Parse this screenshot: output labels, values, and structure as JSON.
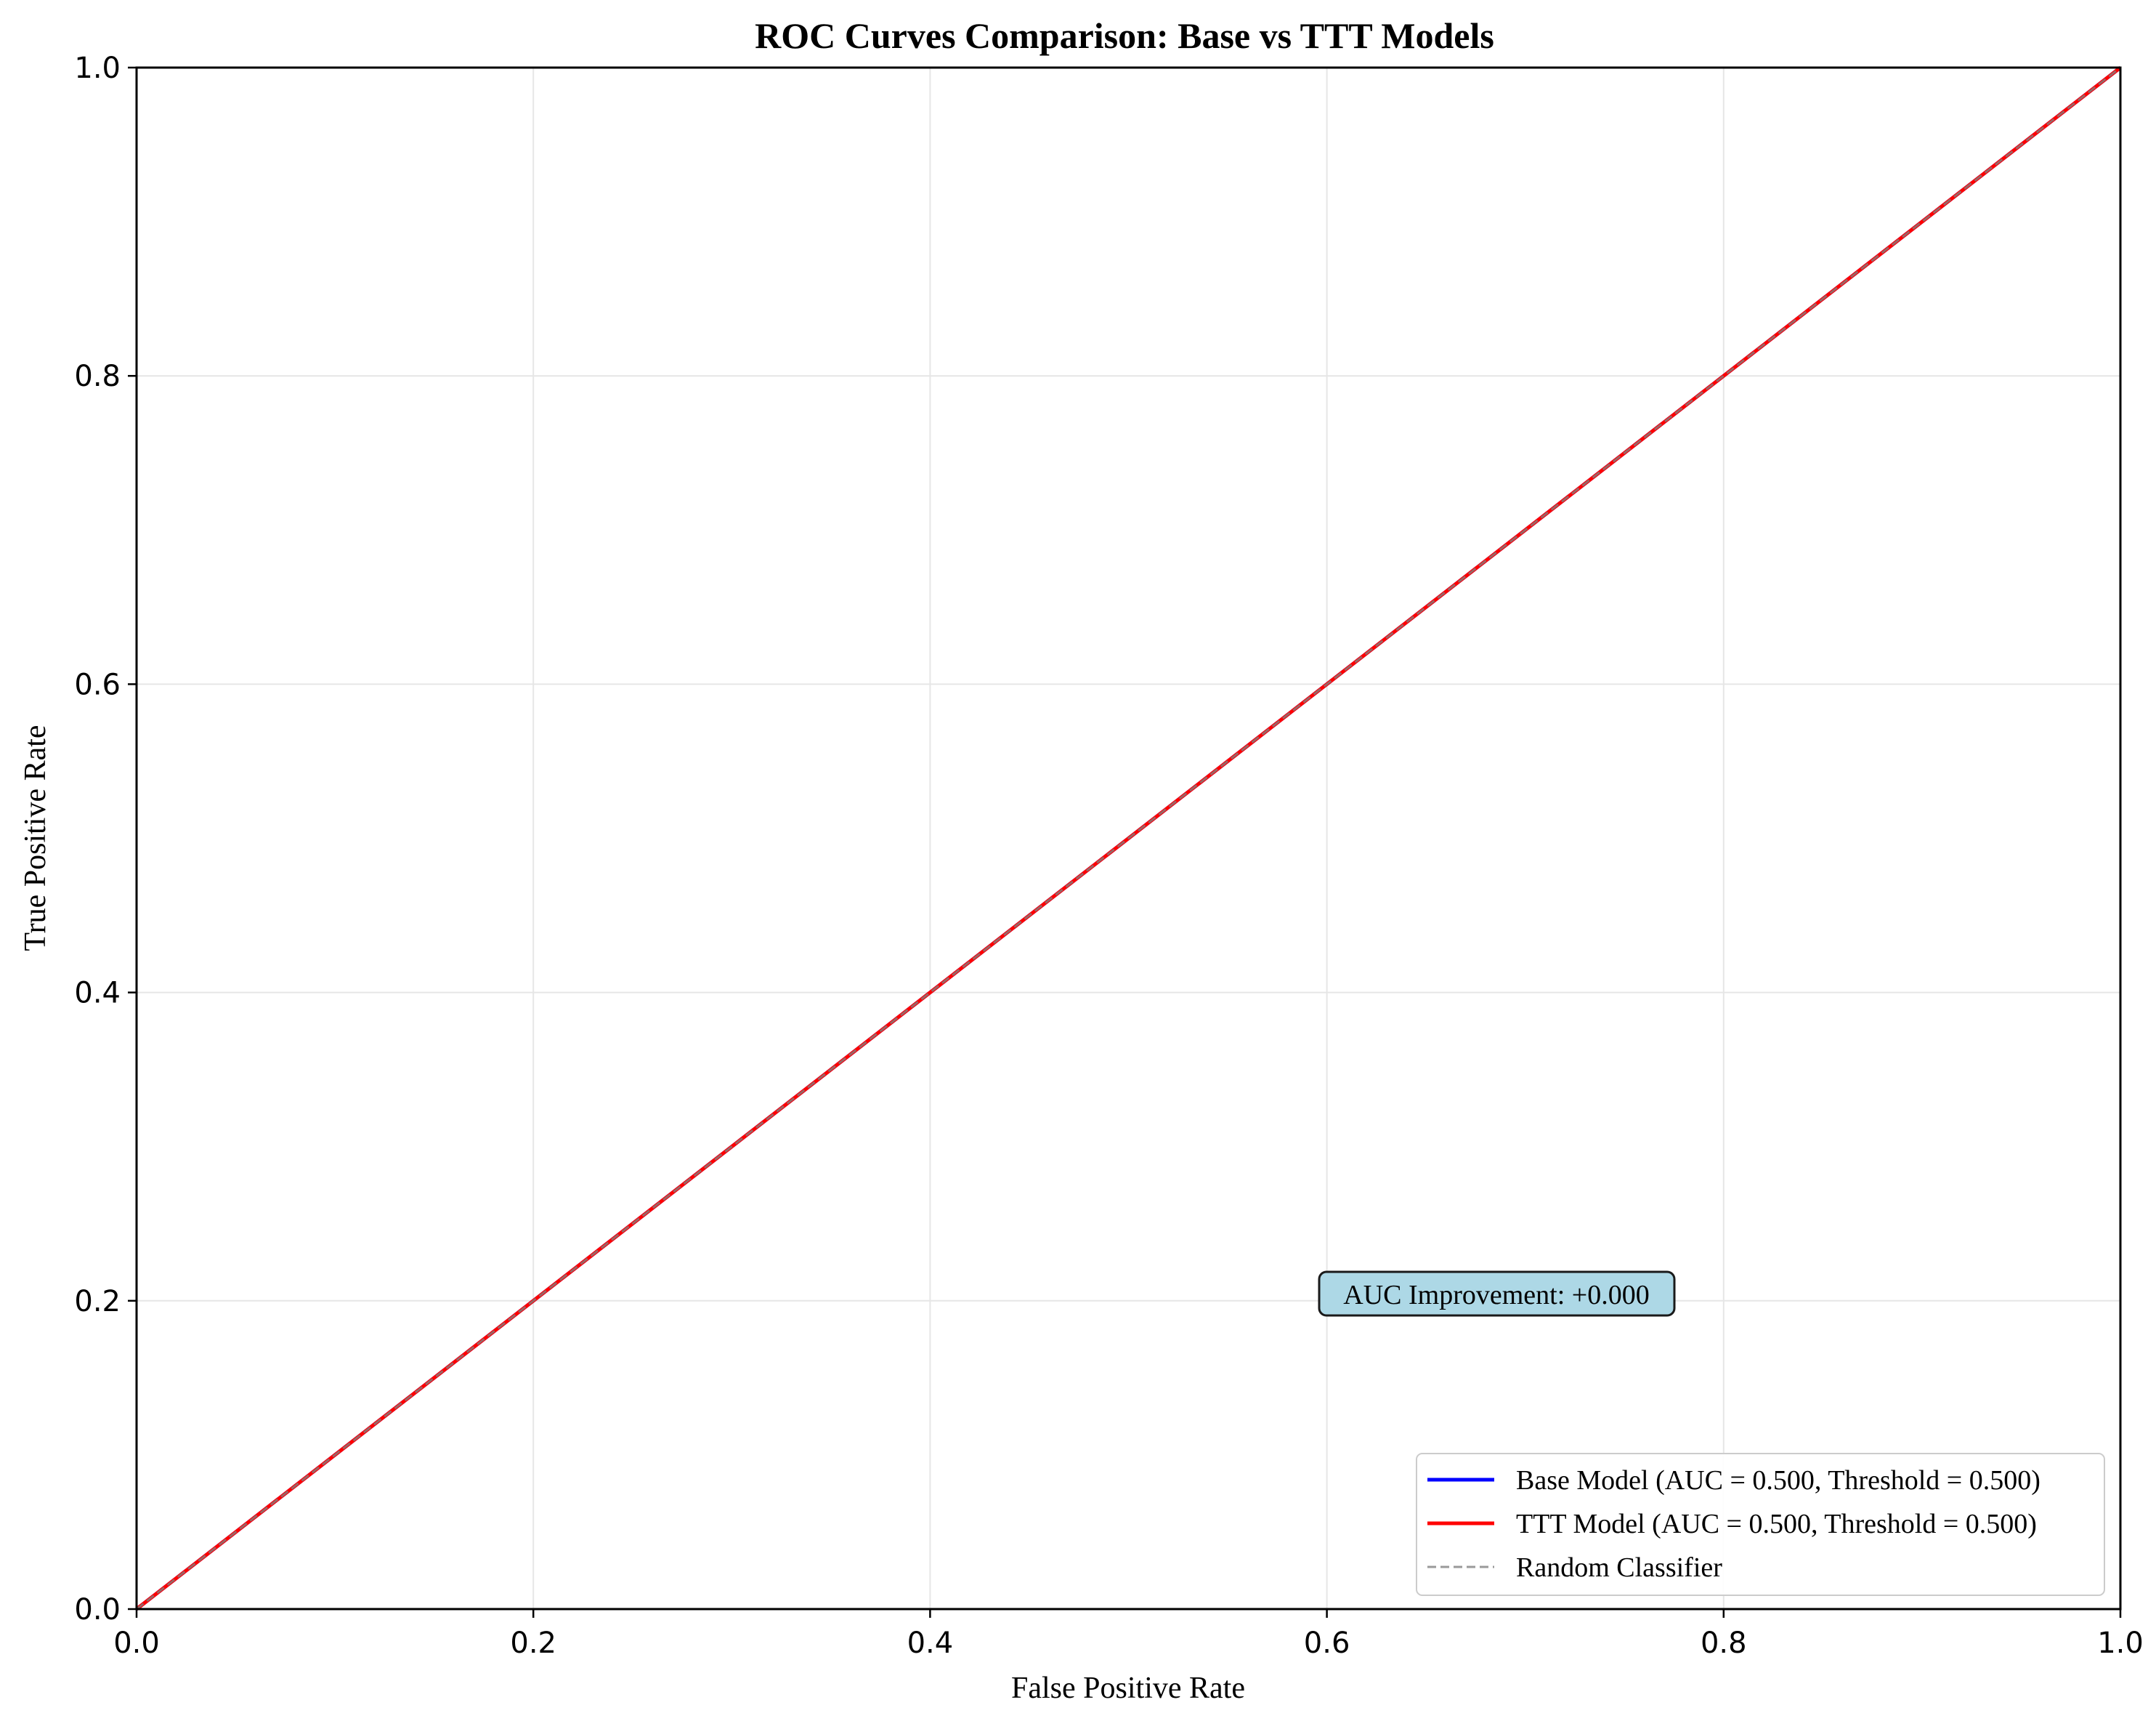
{
  "chart_data": {
    "type": "line",
    "title": "ROC Curves Comparison: Base vs TTT Models",
    "xlabel": "False Positive Rate",
    "ylabel": "True Positive Rate",
    "xlim": [
      0,
      1
    ],
    "ylim": [
      0,
      1
    ],
    "x_ticks": [
      0.0,
      0.2,
      0.4,
      0.6,
      0.8,
      1.0
    ],
    "y_ticks": [
      0.0,
      0.2,
      0.4,
      0.6,
      0.8,
      1.0
    ],
    "x_tick_labels": [
      "0.0",
      "0.2",
      "0.4",
      "0.6",
      "0.8",
      "1.0"
    ],
    "y_tick_labels": [
      "0.0",
      "0.2",
      "0.4",
      "0.6",
      "0.8",
      "1.0"
    ],
    "grid": true,
    "legend_position": "lower-right",
    "series": [
      {
        "name": "Base Model (AUC = 0.500, Threshold = 0.500)",
        "color": "#0000ff",
        "style": "solid",
        "x": [
          0.0,
          1.0
        ],
        "y": [
          0.0,
          1.0
        ]
      },
      {
        "name": "TTT Model (AUC = 0.500, Threshold = 0.500)",
        "color": "#ff0000",
        "style": "solid",
        "x": [
          0.0,
          1.0
        ],
        "y": [
          0.0,
          1.0
        ]
      },
      {
        "name": "Random Classifier",
        "color": "#808080",
        "style": "dashed",
        "x": [
          0.0,
          1.0
        ],
        "y": [
          0.0,
          1.0
        ]
      }
    ],
    "annotation": {
      "text": "AUC Improvement: +0.000",
      "x": 0.6,
      "y": 0.2,
      "background": "#add8e6"
    }
  }
}
